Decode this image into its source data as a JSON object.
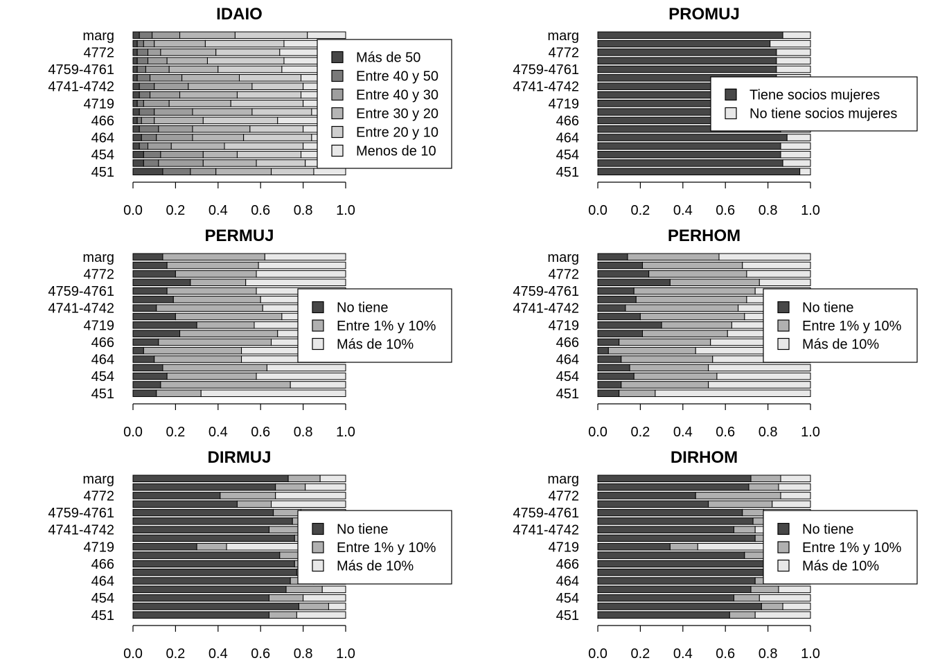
{
  "chart_data": [
    {
      "type": "bar",
      "orientation": "horizontal",
      "stacked": true,
      "title": "IDAIO",
      "categories": [
        "451",
        "",
        "454",
        "",
        "464",
        "",
        "466",
        "",
        "4719",
        "",
        "4741-4742",
        "",
        "4759-4761",
        "",
        "4772",
        "",
        "marg"
      ],
      "xlim": [
        0,
        1
      ],
      "xticks": [
        "0.0",
        "0.2",
        "0.4",
        "0.6",
        "0.8",
        "1.0"
      ],
      "legend_position": "right",
      "series": [
        {
          "name": "Más de 50",
          "color": "#474747",
          "values": [
            0.14,
            0.05,
            0.05,
            0.03,
            0.04,
            0.03,
            0.02,
            0.03,
            0.02,
            0.03,
            0.03,
            0.02,
            0.02,
            0.02,
            0.02,
            0.02,
            0.03
          ]
        },
        {
          "name": "Entre 40 y 50",
          "color": "#7a7a7a",
          "values": [
            0.13,
            0.07,
            0.08,
            0.04,
            0.07,
            0.09,
            0.02,
            0.07,
            0.03,
            0.05,
            0.07,
            0.06,
            0.04,
            0.05,
            0.05,
            0.03,
            0.06
          ]
        },
        {
          "name": "Entre 40 y 30",
          "color": "#9e9e9e",
          "values": [
            0.12,
            0.21,
            0.2,
            0.11,
            0.17,
            0.16,
            0.06,
            0.18,
            0.12,
            0.14,
            0.16,
            0.15,
            0.11,
            0.09,
            0.06,
            0.05,
            0.13
          ]
        },
        {
          "name": "Entre 30 y 20",
          "color": "#b5b5b5",
          "values": [
            0.26,
            0.25,
            0.16,
            0.25,
            0.24,
            0.27,
            0.23,
            0.28,
            0.29,
            0.27,
            0.3,
            0.27,
            0.23,
            0.19,
            0.26,
            0.24,
            0.26
          ]
        },
        {
          "name": "Entre 20 y 10",
          "color": "#cfcfcf",
          "values": [
            0.2,
            0.23,
            0.3,
            0.37,
            0.32,
            0.25,
            0.35,
            0.28,
            0.34,
            0.3,
            0.24,
            0.29,
            0.3,
            0.36,
            0.3,
            0.37,
            0.34
          ]
        },
        {
          "name": "Menos de 10",
          "color": "#e8e8e8",
          "values": [
            0.15,
            0.19,
            0.21,
            0.2,
            0.16,
            0.2,
            0.32,
            0.16,
            0.2,
            0.21,
            0.2,
            0.21,
            0.3,
            0.29,
            0.31,
            0.29,
            0.18
          ]
        }
      ]
    },
    {
      "type": "bar",
      "orientation": "horizontal",
      "stacked": true,
      "title": "PROMUJ",
      "categories": [
        "451",
        "",
        "454",
        "",
        "464",
        "",
        "466",
        "",
        "4719",
        "",
        "4741-4742",
        "",
        "4759-4761",
        "",
        "4772",
        "",
        "marg"
      ],
      "xlim": [
        0,
        1
      ],
      "xticks": [
        "0.0",
        "0.2",
        "0.4",
        "0.6",
        "0.8",
        "1.0"
      ],
      "legend_position": "right",
      "series": [
        {
          "name": "Tiene socios mujeres",
          "color": "#474747",
          "values": [
            0.95,
            0.87,
            0.86,
            0.86,
            0.89,
            0.86,
            0.85,
            0.84,
            0.85,
            0.86,
            0.85,
            0.84,
            0.84,
            0.84,
            0.84,
            0.81,
            0.87
          ]
        },
        {
          "name": "No tiene socios mujeres",
          "color": "#e8e8e8",
          "values": [
            0.05,
            0.13,
            0.14,
            0.14,
            0.11,
            0.14,
            0.15,
            0.16,
            0.15,
            0.14,
            0.15,
            0.16,
            0.16,
            0.16,
            0.16,
            0.19,
            0.13
          ]
        }
      ]
    },
    {
      "type": "bar",
      "orientation": "horizontal",
      "stacked": true,
      "title": "PERMUJ",
      "categories": [
        "451",
        "",
        "454",
        "",
        "464",
        "",
        "466",
        "",
        "4719",
        "",
        "4741-4742",
        "",
        "4759-4761",
        "",
        "4772",
        "",
        "marg"
      ],
      "xlim": [
        0,
        1
      ],
      "xticks": [
        "0.0",
        "0.2",
        "0.4",
        "0.6",
        "0.8",
        "1.0"
      ],
      "legend_position": "right",
      "series": [
        {
          "name": "No tiene",
          "color": "#474747",
          "values": [
            0.11,
            0.13,
            0.16,
            0.14,
            0.1,
            0.05,
            0.12,
            0.22,
            0.3,
            0.2,
            0.11,
            0.19,
            0.16,
            0.27,
            0.2,
            0.16,
            0.14
          ]
        },
        {
          "name": "Entre 1% y 10%",
          "color": "#b0b0b0",
          "values": [
            0.21,
            0.61,
            0.42,
            0.49,
            0.41,
            0.46,
            0.53,
            0.46,
            0.27,
            0.5,
            0.5,
            0.41,
            0.42,
            0.26,
            0.38,
            0.43,
            0.48
          ]
        },
        {
          "name": "Más de 10%",
          "color": "#e8e8e8",
          "values": [
            0.68,
            0.26,
            0.42,
            0.37,
            0.49,
            0.49,
            0.35,
            0.32,
            0.43,
            0.3,
            0.39,
            0.4,
            0.42,
            0.47,
            0.42,
            0.41,
            0.38
          ]
        }
      ]
    },
    {
      "type": "bar",
      "orientation": "horizontal",
      "stacked": true,
      "title": "PERHOM",
      "categories": [
        "451",
        "",
        "454",
        "",
        "464",
        "",
        "466",
        "",
        "4719",
        "",
        "4741-4742",
        "",
        "4759-4761",
        "",
        "4772",
        "",
        "marg"
      ],
      "xlim": [
        0,
        1
      ],
      "xticks": [
        "0.0",
        "0.2",
        "0.4",
        "0.6",
        "0.8",
        "1.0"
      ],
      "legend_position": "right",
      "series": [
        {
          "name": "No tiene",
          "color": "#474747",
          "values": [
            0.1,
            0.11,
            0.17,
            0.15,
            0.11,
            0.05,
            0.1,
            0.21,
            0.3,
            0.2,
            0.13,
            0.18,
            0.17,
            0.34,
            0.24,
            0.21,
            0.14
          ]
        },
        {
          "name": "Entre 1% y 10%",
          "color": "#b0b0b0",
          "values": [
            0.17,
            0.41,
            0.39,
            0.37,
            0.43,
            0.41,
            0.43,
            0.4,
            0.33,
            0.49,
            0.53,
            0.52,
            0.57,
            0.42,
            0.46,
            0.47,
            0.43
          ]
        },
        {
          "name": "Más de 10%",
          "color": "#e8e8e8",
          "values": [
            0.73,
            0.48,
            0.44,
            0.48,
            0.46,
            0.54,
            0.47,
            0.39,
            0.37,
            0.31,
            0.34,
            0.3,
            0.26,
            0.24,
            0.3,
            0.32,
            0.43
          ]
        }
      ]
    },
    {
      "type": "bar",
      "orientation": "horizontal",
      "stacked": true,
      "title": "DIRMUJ",
      "categories": [
        "451",
        "",
        "454",
        "",
        "464",
        "",
        "466",
        "",
        "4719",
        "",
        "4741-4742",
        "",
        "4759-4761",
        "",
        "4772",
        "",
        "marg"
      ],
      "xlim": [
        0,
        1
      ],
      "xticks": [
        "0.0",
        "0.2",
        "0.4",
        "0.6",
        "0.8",
        "1.0"
      ],
      "legend_position": "right",
      "series": [
        {
          "name": "No tiene",
          "color": "#474747",
          "values": [
            0.64,
            0.78,
            0.64,
            0.72,
            0.74,
            0.77,
            0.76,
            0.69,
            0.3,
            0.76,
            0.64,
            0.75,
            0.66,
            0.49,
            0.41,
            0.67,
            0.73
          ]
        },
        {
          "name": "Entre 1% y 10%",
          "color": "#b0b0b0",
          "values": [
            0.13,
            0.14,
            0.16,
            0.17,
            0.11,
            0.1,
            0.1,
            0.12,
            0.14,
            0.11,
            0.14,
            0.1,
            0.13,
            0.16,
            0.26,
            0.14,
            0.15
          ]
        },
        {
          "name": "Más de 10%",
          "color": "#e8e8e8",
          "values": [
            0.23,
            0.08,
            0.2,
            0.11,
            0.15,
            0.13,
            0.14,
            0.19,
            0.56,
            0.13,
            0.22,
            0.15,
            0.21,
            0.35,
            0.33,
            0.19,
            0.12
          ]
        }
      ]
    },
    {
      "type": "bar",
      "orientation": "horizontal",
      "stacked": true,
      "title": "DIRHOM",
      "categories": [
        "451",
        "",
        "454",
        "",
        "464",
        "",
        "466",
        "",
        "4719",
        "",
        "4741-4742",
        "",
        "4759-4761",
        "",
        "4772",
        "",
        "marg"
      ],
      "xlim": [
        0,
        1
      ],
      "xticks": [
        "0.0",
        "0.2",
        "0.4",
        "0.6",
        "0.8",
        "1.0"
      ],
      "legend_position": "right",
      "series": [
        {
          "name": "No tiene",
          "color": "#474747",
          "values": [
            0.62,
            0.77,
            0.64,
            0.72,
            0.74,
            0.78,
            0.78,
            0.69,
            0.34,
            0.74,
            0.64,
            0.73,
            0.68,
            0.52,
            0.46,
            0.71,
            0.72
          ]
        },
        {
          "name": "Entre 1% y 10%",
          "color": "#b0b0b0",
          "values": [
            0.12,
            0.1,
            0.12,
            0.13,
            0.1,
            0.08,
            0.09,
            0.1,
            0.13,
            0.1,
            0.1,
            0.11,
            0.1,
            0.3,
            0.4,
            0.14,
            0.14
          ]
        },
        {
          "name": "Más de 10%",
          "color": "#e8e8e8",
          "values": [
            0.26,
            0.13,
            0.24,
            0.15,
            0.16,
            0.14,
            0.13,
            0.21,
            0.53,
            0.16,
            0.26,
            0.16,
            0.22,
            0.18,
            0.14,
            0.15,
            0.14
          ]
        }
      ]
    }
  ]
}
